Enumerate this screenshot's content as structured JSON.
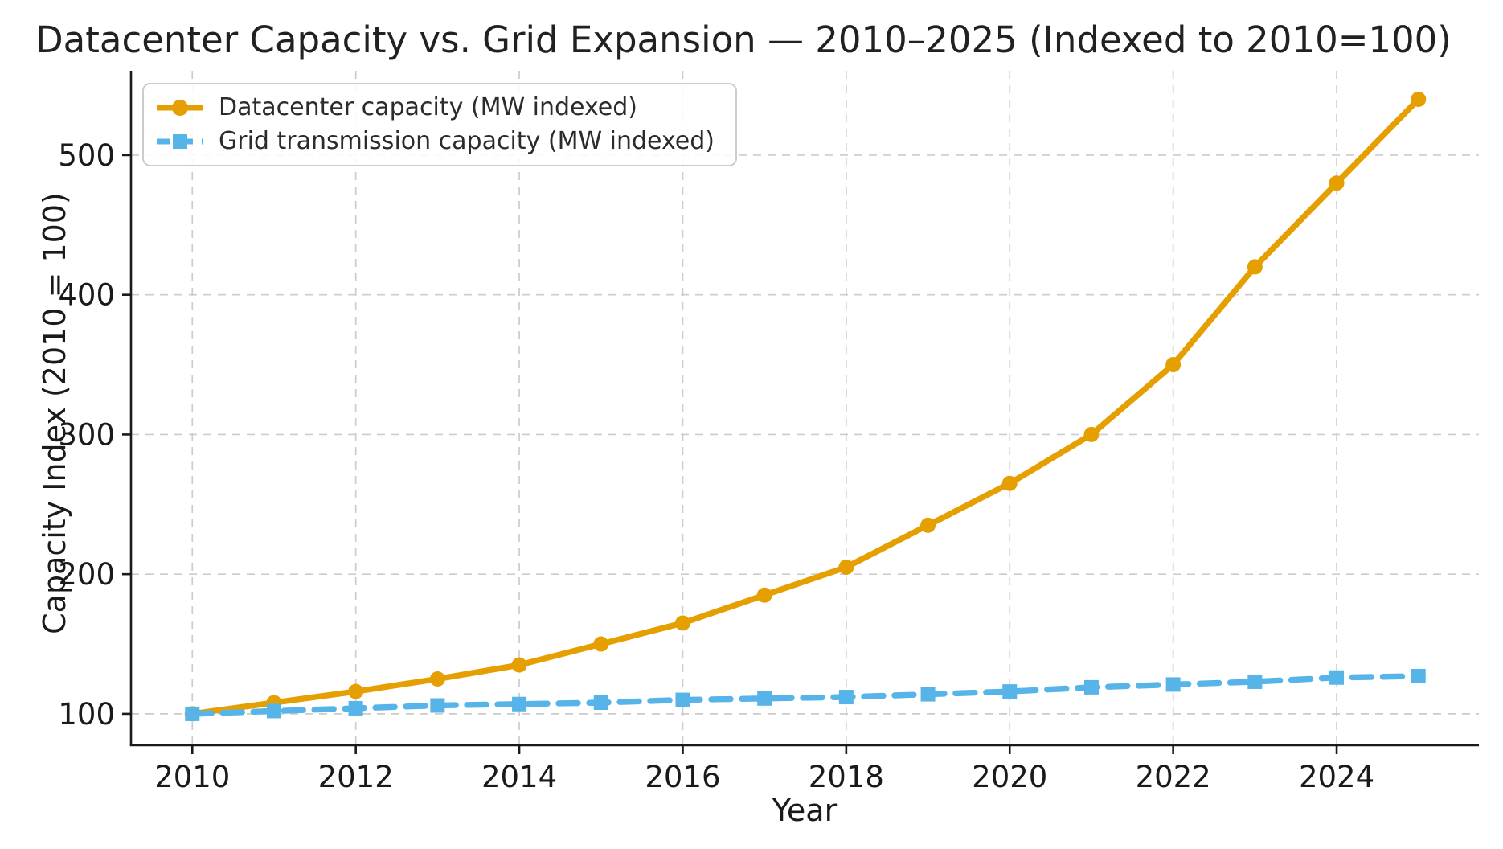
{
  "chart_data": {
    "type": "line",
    "title": "Datacenter Capacity vs. Grid Expansion — 2010–2025 (Indexed to 2010=100)",
    "xlabel": "Year",
    "ylabel": "Capacity Index (2010 = 100)",
    "x": [
      2010,
      2011,
      2012,
      2013,
      2014,
      2015,
      2016,
      2017,
      2018,
      2019,
      2020,
      2021,
      2022,
      2023,
      2024,
      2025
    ],
    "series": [
      {
        "name": "Datacenter capacity (MW indexed)",
        "color": "#E69F00",
        "line_style": "solid",
        "marker": "circle",
        "values": [
          100,
          108,
          116,
          125,
          135,
          150,
          165,
          185,
          205,
          235,
          265,
          300,
          350,
          420,
          480,
          540
        ]
      },
      {
        "name": "Grid transmission capacity (MW indexed)",
        "color": "#56B4E9",
        "line_style": "dashed",
        "marker": "square",
        "values": [
          100,
          102,
          104,
          106,
          107,
          108,
          110,
          111,
          112,
          114,
          116,
          119,
          121,
          123,
          126,
          127
        ]
      }
    ],
    "x_ticks": [
      2010,
      2012,
      2014,
      2016,
      2018,
      2020,
      2022,
      2024
    ],
    "y_ticks": [
      100,
      200,
      300,
      400,
      500
    ],
    "x_range": [
      2009.25,
      2025.74
    ],
    "y_range": [
      77.5,
      560.4
    ],
    "grid": true,
    "grid_style": "dashed",
    "legend_position": "upper left"
  },
  "colors": {
    "datacenter_series": "#E69F00",
    "grid_series": "#56B4E9",
    "gridline": "#cccccc",
    "axis": "#1a1a1a",
    "text": "#1a1a1a",
    "legend_border": "#cccccc"
  }
}
